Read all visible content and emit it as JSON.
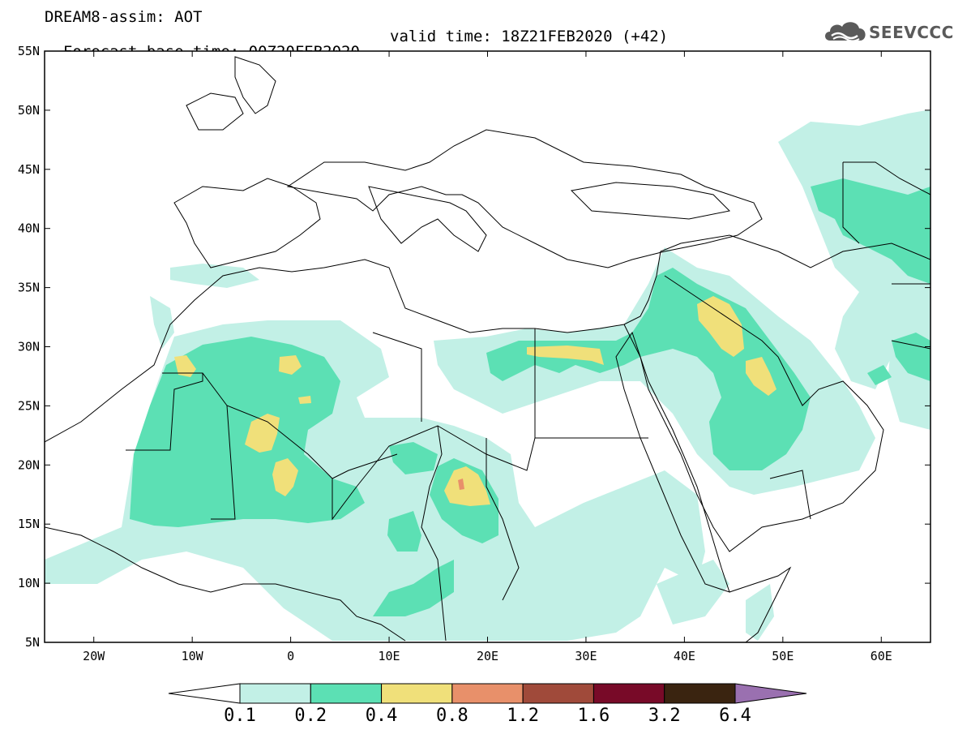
{
  "header": {
    "model_line": "DREAM8-assim: AOT",
    "base_time_line": "Forecast base time: 00Z20FEB2020",
    "valid_time_line": "valid time: 18Z21FEB2020 (+42)"
  },
  "logo": {
    "text": "SEEVCCC",
    "icon": "cloud-logo-icon"
  },
  "map": {
    "lon_range": [
      -25,
      65
    ],
    "lat_range": [
      5,
      55
    ],
    "lat_ticks": [
      "55N",
      "50N",
      "45N",
      "40N",
      "35N",
      "30N",
      "25N",
      "20N",
      "15N",
      "10N",
      "5N"
    ],
    "lon_ticks": [
      "20W",
      "10W",
      "0",
      "10E",
      "20E",
      "30E",
      "40E",
      "50E",
      "60E"
    ]
  },
  "colorbar": {
    "colors": [
      "#ffffff",
      "#c2f0e6",
      "#5ce0b4",
      "#f0e07a",
      "#e8906a",
      "#a04a3a",
      "#780a28",
      "#3a2410",
      "#9a70b0"
    ],
    "labels": [
      "0.1",
      "0.2",
      "0.4",
      "0.8",
      "1.2",
      "1.6",
      "3.2",
      "6.4"
    ]
  }
}
